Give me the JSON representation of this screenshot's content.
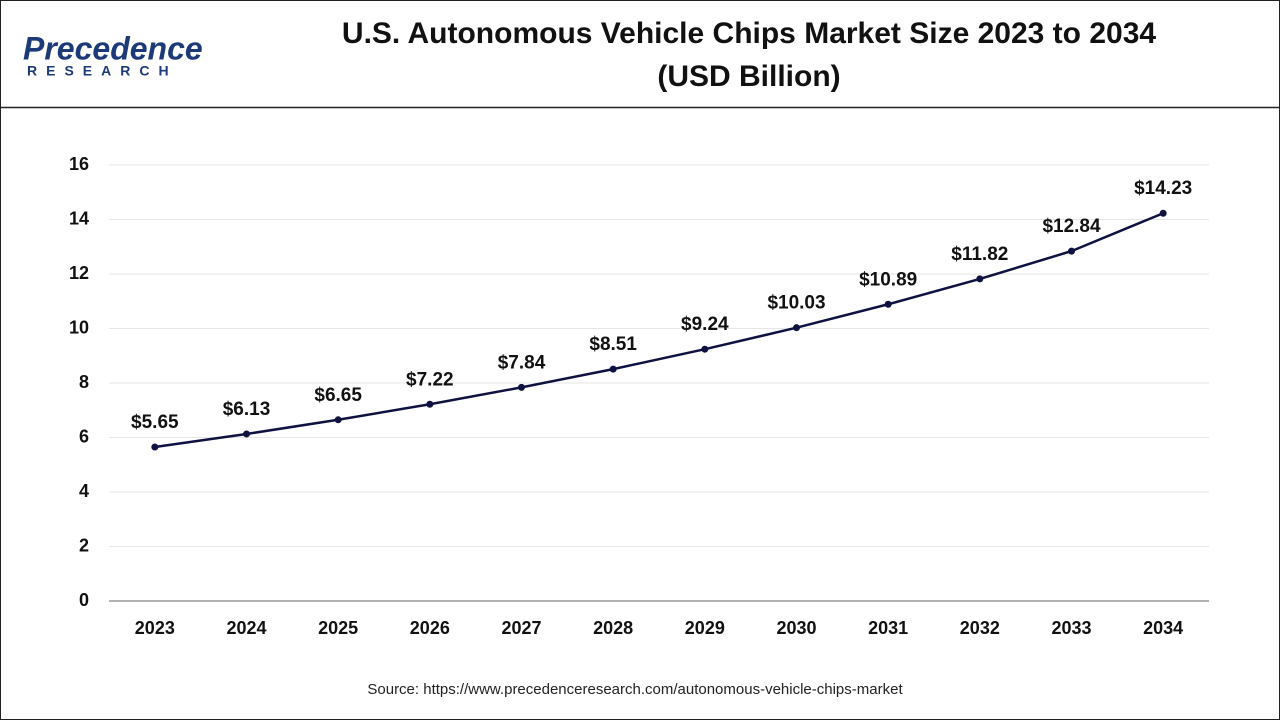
{
  "logo": {
    "name": "Precedence",
    "tagline": "RESEARCH"
  },
  "chart_data": {
    "type": "line",
    "title": [
      "U.S. Autonomous Vehicle Chips Market Size 2023 to 2034",
      "(USD Billion)"
    ],
    "categories": [
      "2023",
      "2024",
      "2025",
      "2026",
      "2027",
      "2028",
      "2029",
      "2030",
      "2031",
      "2032",
      "2033",
      "2034"
    ],
    "values": [
      5.65,
      6.13,
      6.65,
      7.22,
      7.84,
      8.51,
      9.24,
      10.03,
      10.89,
      11.82,
      12.84,
      14.23
    ],
    "value_labels": [
      "$5.65",
      "$6.13",
      "$6.65",
      "$7.22",
      "$7.84",
      "$8.51",
      "$9.24",
      "$10.03",
      "$10.89",
      "$11.82",
      "$12.84",
      "$14.23"
    ],
    "color": "#0f1240",
    "ylim": [
      0,
      16
    ],
    "yticks": [
      0,
      2,
      4,
      6,
      8,
      10,
      12,
      14,
      16
    ],
    "grid": true,
    "source": "Source: https://www.precedenceresearch.com/autonomous-vehicle-chips-market"
  }
}
